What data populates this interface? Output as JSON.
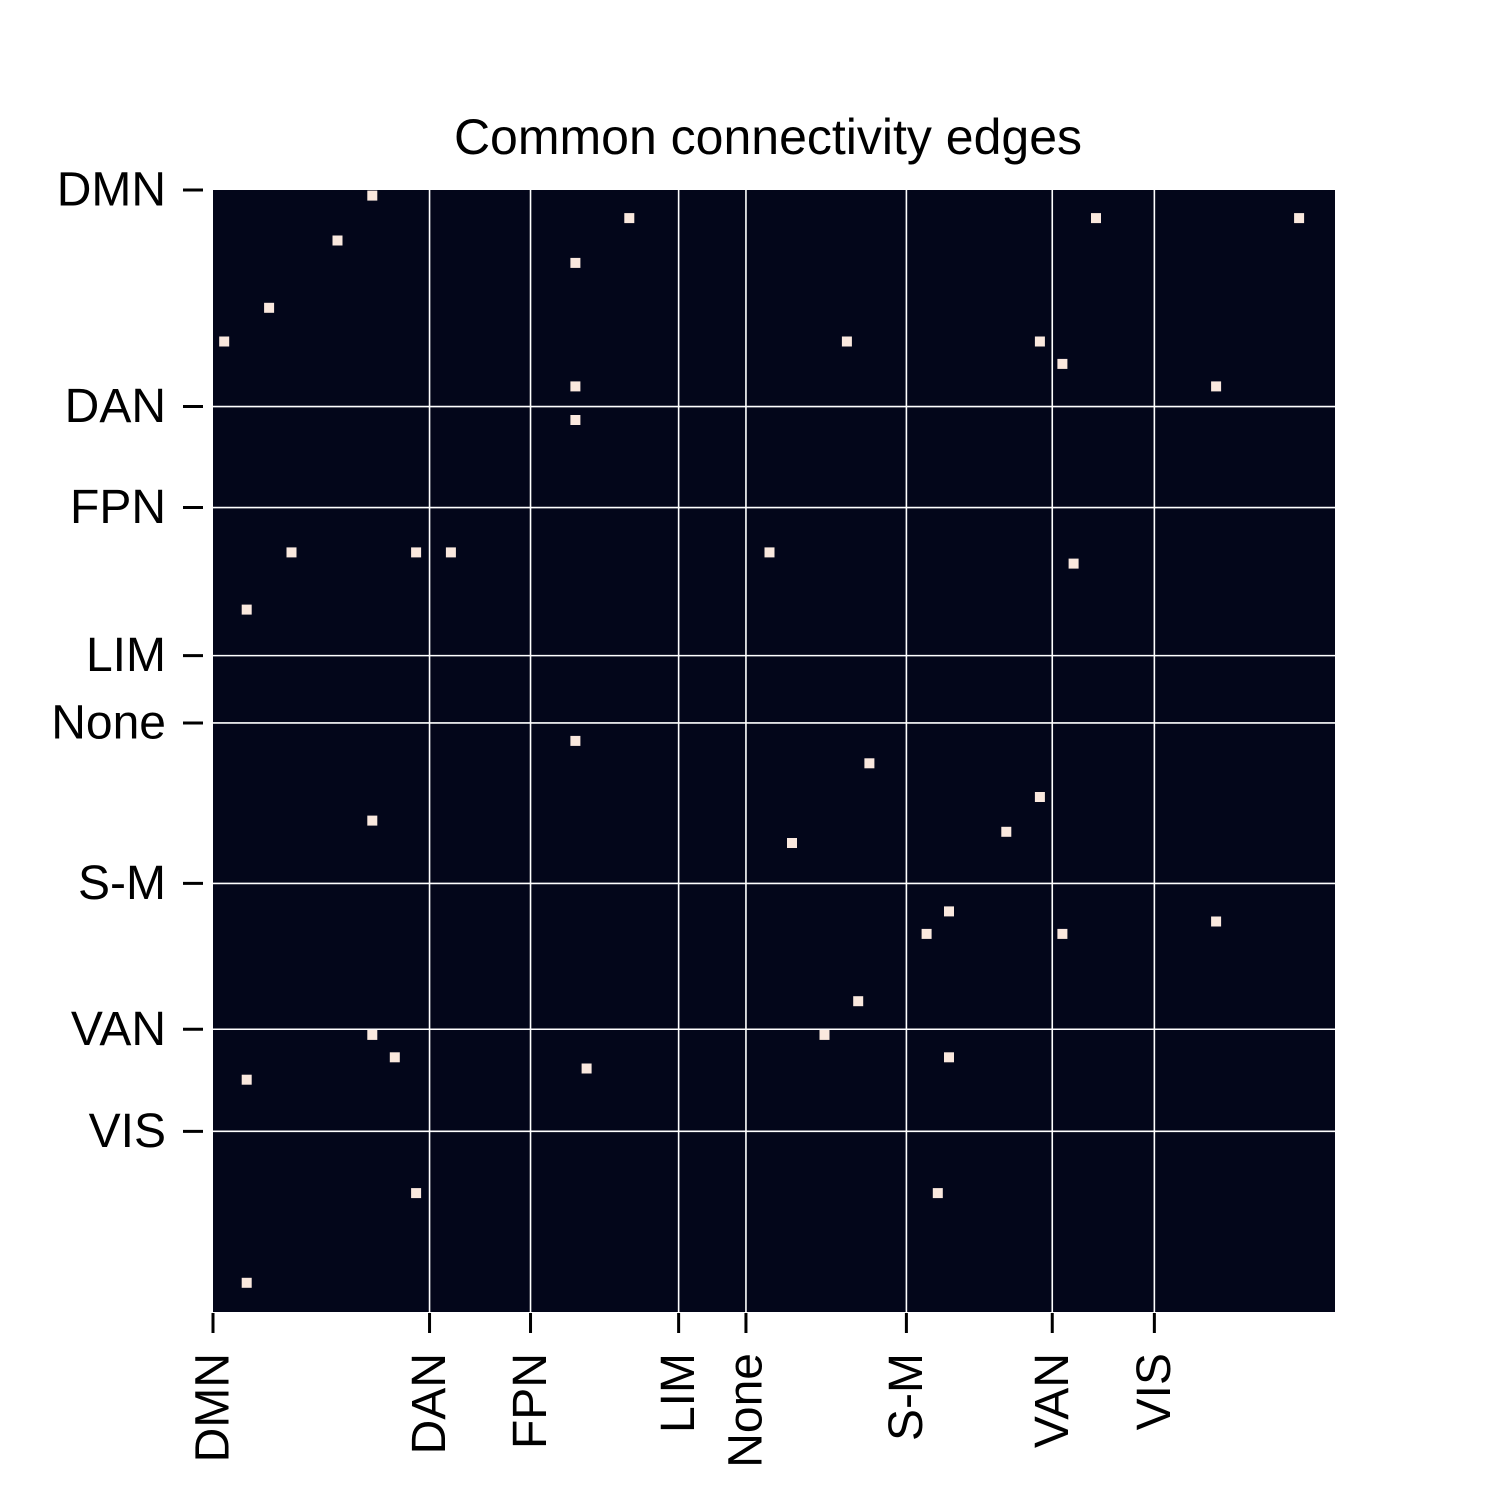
{
  "chart_data": {
    "type": "heatmap",
    "title": "Common connectivity edges",
    "xlabel": "",
    "ylabel": "",
    "matrix_size": 100,
    "grid": true,
    "colorbar": false,
    "colors": {
      "background": "#03061a",
      "edge": "#fae8de",
      "grid": "#ffffff",
      "text": "#000000"
    },
    "value_map": {
      "background": 0,
      "edge": 1
    },
    "network_labels": [
      "DMN",
      "DAN",
      "FPN",
      "LIM",
      "None",
      "S-M",
      "VAN",
      "VIS"
    ],
    "network_starts": [
      0,
      19.3,
      28.3,
      41.5,
      47.5,
      61.8,
      74.8,
      83.9
    ],
    "edges": [
      {
        "row": 0,
        "col": 13.7
      },
      {
        "row": 2,
        "col": 36.6
      },
      {
        "row": 2,
        "col": 78.2
      },
      {
        "row": 2,
        "col": 96.3
      },
      {
        "row": 4,
        "col": 10.6
      },
      {
        "row": 6,
        "col": 31.8
      },
      {
        "row": 10,
        "col": 4.5
      },
      {
        "row": 13,
        "col": 0.5
      },
      {
        "row": 13,
        "col": 56.0
      },
      {
        "row": 13,
        "col": 73.2
      },
      {
        "row": 15,
        "col": 75.2
      },
      {
        "row": 17,
        "col": 31.8
      },
      {
        "row": 17,
        "col": 88.9
      },
      {
        "row": 20,
        "col": 31.8
      },
      {
        "row": 31.8,
        "col": 6.5
      },
      {
        "row": 31.8,
        "col": 17.6
      },
      {
        "row": 31.8,
        "col": 20.7
      },
      {
        "row": 31.8,
        "col": 49.1
      },
      {
        "row": 32.8,
        "col": 76.2
      },
      {
        "row": 36.9,
        "col": 2.5
      },
      {
        "row": 48.6,
        "col": 31.8
      },
      {
        "row": 50.6,
        "col": 58.0
      },
      {
        "row": 53.6,
        "col": 73.2
      },
      {
        "row": 55.7,
        "col": 13.7
      },
      {
        "row": 56.7,
        "col": 70.2
      },
      {
        "row": 57.7,
        "col": 51.1
      },
      {
        "row": 63.8,
        "col": 65.1
      },
      {
        "row": 64.7,
        "col": 88.9
      },
      {
        "row": 65.8,
        "col": 63.1
      },
      {
        "row": 65.8,
        "col": 75.2
      },
      {
        "row": 71.8,
        "col": 57.0
      },
      {
        "row": 74.8,
        "col": 13.7
      },
      {
        "row": 74.8,
        "col": 54.0
      },
      {
        "row": 76.8,
        "col": 15.7
      },
      {
        "row": 76.8,
        "col": 65.1
      },
      {
        "row": 77.8,
        "col": 32.8
      },
      {
        "row": 78.8,
        "col": 2.5
      },
      {
        "row": 88.9,
        "col": 17.6
      },
      {
        "row": 88.9,
        "col": 64.1
      },
      {
        "row": 96.9,
        "col": 2.5
      }
    ]
  }
}
